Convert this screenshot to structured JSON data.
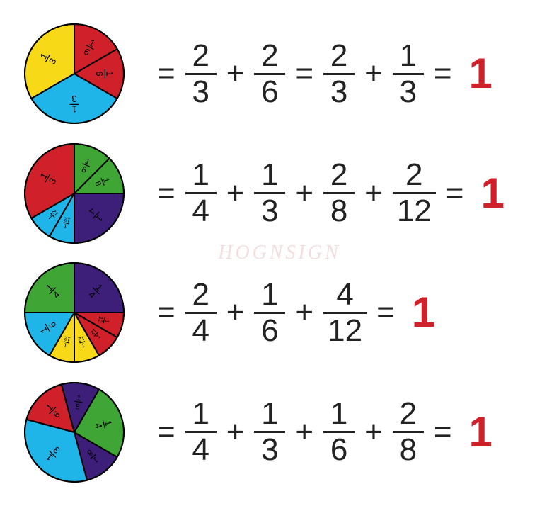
{
  "colors": {
    "yellow": "#f7d917",
    "red": "#d0202a",
    "blue": "#1fb5e8",
    "green": "#3fa535",
    "purple": "#3d1e78",
    "outline": "#000000",
    "text": "#222222",
    "result": "#d0202a",
    "background": "#ffffff",
    "watermark": "#f2dede"
  },
  "watermark": "HOGNSIGN",
  "pie_radius": 70,
  "rows": [
    {
      "slices": [
        {
          "start": 90,
          "sweep": 120,
          "color": "yellow",
          "label_num": "1",
          "label_den": "3"
        },
        {
          "start": 210,
          "sweep": 120,
          "color": "blue",
          "label_num": "1",
          "label_den": "3"
        },
        {
          "start": 330,
          "sweep": 60,
          "color": "red",
          "label_num": "1",
          "label_den": "6"
        },
        {
          "start": 30,
          "sweep": 60,
          "color": "red",
          "label_num": "1",
          "label_den": "6"
        }
      ],
      "equation": [
        {
          "type": "op",
          "value": "="
        },
        {
          "type": "frac",
          "num": "2",
          "den": "3"
        },
        {
          "type": "op",
          "value": "+"
        },
        {
          "type": "frac",
          "num": "2",
          "den": "6"
        },
        {
          "type": "op",
          "value": "="
        },
        {
          "type": "frac",
          "num": "2",
          "den": "3"
        },
        {
          "type": "op",
          "value": "+"
        },
        {
          "type": "frac",
          "num": "1",
          "den": "3"
        },
        {
          "type": "op",
          "value": "="
        },
        {
          "type": "result",
          "value": "1"
        }
      ]
    },
    {
      "slices": [
        {
          "start": 90,
          "sweep": 120,
          "color": "red",
          "label_num": "1",
          "label_den": "3"
        },
        {
          "start": 210,
          "sweep": 30,
          "color": "blue",
          "label_num": "1",
          "label_den": "12"
        },
        {
          "start": 240,
          "sweep": 30,
          "color": "blue",
          "label_num": "1",
          "label_den": "12"
        },
        {
          "start": 270,
          "sweep": 90,
          "color": "purple",
          "label_num": "1",
          "label_den": "4"
        },
        {
          "start": 0,
          "sweep": 45,
          "color": "green",
          "label_num": "1",
          "label_den": "8"
        },
        {
          "start": 45,
          "sweep": 45,
          "color": "green",
          "label_num": "1",
          "label_den": "8"
        }
      ],
      "equation": [
        {
          "type": "op",
          "value": "="
        },
        {
          "type": "frac",
          "num": "1",
          "den": "4"
        },
        {
          "type": "op",
          "value": "+"
        },
        {
          "type": "frac",
          "num": "1",
          "den": "3"
        },
        {
          "type": "op",
          "value": "+"
        },
        {
          "type": "frac",
          "num": "2",
          "den": "8"
        },
        {
          "type": "op",
          "value": "+"
        },
        {
          "type": "frac",
          "num": "2",
          "den": "12"
        },
        {
          "type": "op",
          "value": "="
        },
        {
          "type": "result",
          "value": "1"
        }
      ]
    },
    {
      "slices": [
        {
          "start": 90,
          "sweep": 90,
          "color": "green",
          "label_num": "1",
          "label_den": "4"
        },
        {
          "start": 180,
          "sweep": 60,
          "color": "blue",
          "label_num": "1",
          "label_den": "6"
        },
        {
          "start": 240,
          "sweep": 30,
          "color": "yellow",
          "label_num": "1",
          "label_den": "12"
        },
        {
          "start": 270,
          "sweep": 30,
          "color": "yellow",
          "label_num": "1",
          "label_den": "12"
        },
        {
          "start": 300,
          "sweep": 30,
          "color": "red",
          "label_num": "1",
          "label_den": "12"
        },
        {
          "start": 330,
          "sweep": 30,
          "color": "red",
          "label_num": "1",
          "label_den": "12"
        },
        {
          "start": 0,
          "sweep": 90,
          "color": "purple",
          "label_num": "1",
          "label_den": "4"
        }
      ],
      "equation": [
        {
          "type": "op",
          "value": "="
        },
        {
          "type": "frac",
          "num": "2",
          "den": "4"
        },
        {
          "type": "op",
          "value": "+"
        },
        {
          "type": "frac",
          "num": "1",
          "den": "6"
        },
        {
          "type": "op",
          "value": "+"
        },
        {
          "type": "frac",
          "num": "4",
          "den": "12"
        },
        {
          "type": "op",
          "value": "="
        },
        {
          "type": "result",
          "value": "1"
        }
      ]
    },
    {
      "slices": [
        {
          "start": 105,
          "sweep": 60,
          "color": "red",
          "label_num": "1",
          "label_den": "6"
        },
        {
          "start": 165,
          "sweep": 120,
          "color": "blue",
          "label_num": "1",
          "label_den": "3"
        },
        {
          "start": 285,
          "sweep": 45,
          "color": "purple",
          "label_num": "1",
          "label_den": "8"
        },
        {
          "start": 330,
          "sweep": 90,
          "color": "green",
          "label_num": "1",
          "label_den": "4"
        },
        {
          "start": 60,
          "sweep": 45,
          "color": "purple",
          "label_num": "1",
          "label_den": "8"
        }
      ],
      "equation": [
        {
          "type": "op",
          "value": "="
        },
        {
          "type": "frac",
          "num": "1",
          "den": "4"
        },
        {
          "type": "op",
          "value": "+"
        },
        {
          "type": "frac",
          "num": "1",
          "den": "3"
        },
        {
          "type": "op",
          "value": "+"
        },
        {
          "type": "frac",
          "num": "1",
          "den": "6"
        },
        {
          "type": "op",
          "value": "+"
        },
        {
          "type": "frac",
          "num": "2",
          "den": "8"
        },
        {
          "type": "op",
          "value": "="
        },
        {
          "type": "result",
          "value": "1"
        }
      ]
    }
  ]
}
